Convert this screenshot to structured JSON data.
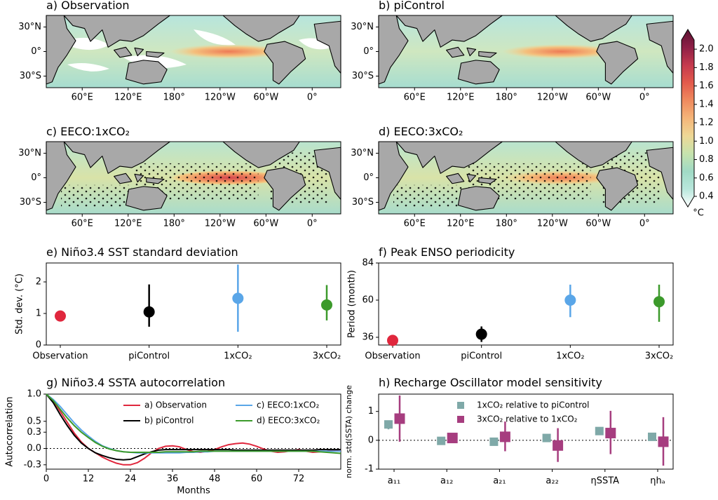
{
  "panels": {
    "a": {
      "title": "a) Observation"
    },
    "b": {
      "title": "b) piControl"
    },
    "c": {
      "title": "c) EECO:1xCO₂"
    },
    "d": {
      "title": "d) EECO:3xCO₂"
    },
    "e": {
      "title": "e) Niño3.4 SST standard deviation"
    },
    "f": {
      "title": "f) Peak ENSO periodicity"
    },
    "g": {
      "title": "g) Niño3.4 SSTA autocorrelation"
    },
    "h": {
      "title": "h) Recharge Oscillator model sensitivity"
    }
  },
  "maps": {
    "lon_ticks": [
      "60°E",
      "120°E",
      "180°",
      "120°W",
      "60°W",
      "0°"
    ],
    "lat_ticks": [
      "30°N",
      "0°",
      "30°S"
    ]
  },
  "colorbar": {
    "unit": "°C",
    "range": [
      0.4,
      2.1
    ],
    "ticks": [
      "2.0",
      "1.8",
      "1.6",
      "1.4",
      "1.2",
      "1.0",
      "0.8",
      "0.6",
      "0.4"
    ],
    "colors": [
      "#ffffff",
      "#b9e7dc",
      "#a0dac5",
      "#c6e3ad",
      "#eed896",
      "#f5b579",
      "#ef8a5e",
      "#e35a4c",
      "#c53a4e",
      "#8e1f46",
      "#5c1232"
    ]
  },
  "chart_data": [
    {
      "type": "scatter",
      "panel": "e",
      "ylabel": "Std. dev. (°C)",
      "ylim": [
        0,
        2.6
      ],
      "yticks": [
        "0",
        "1",
        "2"
      ],
      "categories": [
        "Observation",
        "piControl",
        "1xCO₂",
        "3xCO₂"
      ],
      "values": [
        0.92,
        1.05,
        1.48,
        1.27
      ],
      "error_low": [
        null,
        0.58,
        0.42,
        0.78
      ],
      "error_high": [
        null,
        1.92,
        2.55,
        1.9
      ],
      "colors": [
        "#e0273d",
        "#000000",
        "#5aa6e8",
        "#3c9a2b"
      ]
    },
    {
      "type": "scatter",
      "panel": "f",
      "ylabel": "Period (month)",
      "ylim": [
        31,
        84
      ],
      "yticks": [
        "36",
        "60",
        "84"
      ],
      "categories": [
        "Observation",
        "piControl",
        "1xCO₂",
        "3xCO₂"
      ],
      "values": [
        34,
        38,
        60,
        59
      ],
      "error_low": [
        null,
        33,
        49,
        46
      ],
      "error_high": [
        null,
        43,
        70,
        70
      ],
      "colors": [
        "#e0273d",
        "#000000",
        "#5aa6e8",
        "#3c9a2b"
      ]
    },
    {
      "type": "line",
      "panel": "g",
      "ylabel": "Autocorrelation",
      "xlabel": "Months",
      "xlim": [
        0,
        84
      ],
      "ylim": [
        -0.38,
        1.0
      ],
      "xticks": [
        "0",
        "12",
        "24",
        "36",
        "48",
        "60",
        "72"
      ],
      "yticks": [
        "1.0",
        "0.5",
        "0.3",
        "0.0",
        "-0.3"
      ],
      "legend": [
        "a) Observation",
        "b) piControl",
        "c) EECO:1xCO₂",
        "d) EECO:3xCO₂"
      ],
      "series": [
        {
          "name": "a) Observation",
          "color": "#e0273d",
          "x": [
            0,
            2,
            4,
            6,
            8,
            10,
            12,
            14,
            16,
            18,
            20,
            22,
            24,
            26,
            28,
            30,
            32,
            34,
            36,
            38,
            40,
            42,
            44,
            46,
            48,
            50,
            52,
            54,
            56,
            58,
            60,
            62,
            64,
            66,
            68,
            70,
            72,
            74,
            76,
            78,
            80,
            82,
            84
          ],
          "y": [
            1.0,
            0.88,
            0.68,
            0.48,
            0.28,
            0.12,
            0.0,
            -0.08,
            -0.16,
            -0.22,
            -0.27,
            -0.3,
            -0.3,
            -0.26,
            -0.18,
            -0.08,
            0.0,
            0.04,
            0.05,
            0.03,
            -0.02,
            -0.06,
            -0.07,
            -0.05,
            -0.02,
            0.03,
            0.07,
            0.09,
            0.1,
            0.08,
            0.04,
            -0.01,
            -0.05,
            -0.07,
            -0.06,
            -0.04,
            -0.02,
            -0.05,
            -0.07,
            -0.06,
            -0.05,
            -0.03,
            -0.02
          ]
        },
        {
          "name": "b) piControl",
          "color": "#000000",
          "x": [
            0,
            2,
            4,
            6,
            8,
            10,
            12,
            14,
            16,
            18,
            20,
            22,
            24,
            26,
            28,
            30,
            32,
            34,
            36,
            38,
            40,
            42,
            44,
            46,
            48,
            50,
            52,
            54,
            56,
            58,
            60,
            62,
            64,
            66,
            68,
            70,
            72,
            74,
            76,
            78,
            80,
            82,
            84
          ],
          "y": [
            1.0,
            0.84,
            0.62,
            0.42,
            0.24,
            0.1,
            0.0,
            -0.08,
            -0.13,
            -0.17,
            -0.2,
            -0.21,
            -0.2,
            -0.15,
            -0.1,
            -0.06,
            -0.03,
            -0.02,
            -0.02,
            -0.02,
            -0.02,
            -0.02,
            -0.02,
            -0.02,
            -0.02,
            -0.02,
            -0.02,
            -0.03,
            -0.03,
            -0.03,
            -0.03,
            -0.03,
            -0.03,
            -0.03,
            -0.03,
            -0.03,
            -0.03,
            -0.03,
            -0.03,
            -0.02,
            -0.02,
            -0.02,
            -0.02
          ]
        },
        {
          "name": "c) EECO:1xCO₂",
          "color": "#5aa6e8",
          "x": [
            0,
            2,
            4,
            6,
            8,
            10,
            12,
            14,
            16,
            18,
            20,
            22,
            24,
            26,
            28,
            30,
            32,
            34,
            36,
            38,
            40,
            42,
            44,
            46,
            48,
            50,
            52,
            54,
            56,
            58,
            60,
            62,
            64,
            66,
            68,
            70,
            72,
            74,
            76,
            78,
            80,
            82,
            84
          ],
          "y": [
            1.0,
            0.9,
            0.77,
            0.62,
            0.47,
            0.34,
            0.23,
            0.13,
            0.05,
            0.0,
            -0.04,
            -0.06,
            -0.07,
            -0.08,
            -0.08,
            -0.08,
            -0.08,
            -0.08,
            -0.08,
            -0.08,
            -0.07,
            -0.07,
            -0.06,
            -0.06,
            -0.05,
            -0.05,
            -0.05,
            -0.05,
            -0.05,
            -0.05,
            -0.05,
            -0.05,
            -0.05,
            -0.05,
            -0.05,
            -0.05,
            -0.05,
            -0.05,
            -0.05,
            -0.05,
            -0.05,
            -0.05,
            -0.05
          ]
        },
        {
          "name": "d) EECO:3xCO₂",
          "color": "#3c9a2b",
          "x": [
            0,
            2,
            4,
            6,
            8,
            10,
            12,
            14,
            16,
            18,
            20,
            22,
            24,
            26,
            28,
            30,
            32,
            34,
            36,
            38,
            40,
            42,
            44,
            46,
            48,
            50,
            52,
            54,
            56,
            58,
            60,
            62,
            64,
            66,
            68,
            70,
            72,
            74,
            76,
            78,
            80,
            82,
            84
          ],
          "y": [
            1.0,
            0.88,
            0.72,
            0.56,
            0.42,
            0.3,
            0.2,
            0.11,
            0.04,
            -0.01,
            -0.04,
            -0.06,
            -0.07,
            -0.07,
            -0.07,
            -0.07,
            -0.07,
            -0.06,
            -0.06,
            -0.06,
            -0.06,
            -0.06,
            -0.05,
            -0.05,
            -0.05,
            -0.05,
            -0.05,
            -0.05,
            -0.05,
            -0.05,
            -0.05,
            -0.05,
            -0.05,
            -0.05,
            -0.05,
            -0.05,
            -0.05,
            -0.05,
            -0.05,
            -0.06,
            -0.07,
            -0.08,
            -0.09
          ]
        }
      ]
    },
    {
      "type": "scatter",
      "panel": "h",
      "ylabel": "norm. std(SSTA) change",
      "ylim": [
        -1.0,
        1.6
      ],
      "yticks": [
        "1",
        "0",
        "-1"
      ],
      "categories": [
        "a₁₁",
        "a₁₂",
        "a₂₁",
        "a₂₂",
        "ηSSTA",
        "ηhₐ"
      ],
      "series": [
        {
          "name": "1xCO₂ relative to piControl",
          "color": "#7fa9a8",
          "values": [
            0.55,
            -0.02,
            -0.05,
            0.08,
            0.32,
            0.12
          ],
          "error_low": [
            0.38,
            -0.05,
            -0.08,
            0.04,
            0.28,
            0.08
          ],
          "error_high": [
            0.68,
            0.02,
            -0.02,
            0.12,
            0.36,
            0.16
          ]
        },
        {
          "name": "3xCO₂ relative to 1xCO₂",
          "color": "#a63d7f",
          "values": [
            0.75,
            0.08,
            0.12,
            -0.18,
            0.25,
            -0.05
          ],
          "error_low": [
            -0.05,
            -0.05,
            -0.38,
            -0.75,
            -0.48,
            -0.88
          ],
          "error_high": [
            1.55,
            0.2,
            0.65,
            0.42,
            1.02,
            0.8
          ]
        }
      ]
    }
  ]
}
